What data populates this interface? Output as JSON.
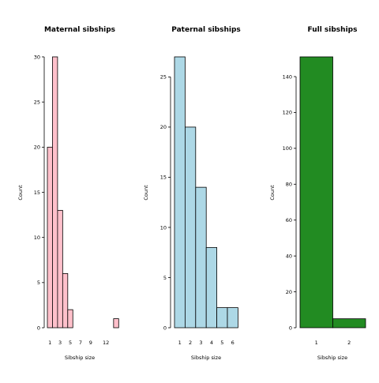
{
  "chart_data": [
    {
      "type": "bar",
      "title": "Maternal sibships",
      "xlabel": "",
      "ylabel": "Count",
      "ylim": [
        0,
        30
      ],
      "yticks": [
        0,
        5,
        10,
        15,
        20,
        25,
        30
      ],
      "xticks": [
        "1",
        "3",
        "5",
        "7",
        "9",
        "12"
      ],
      "categories": [
        "1",
        "2",
        "3",
        "4",
        "5",
        "6",
        "7",
        "8",
        "9",
        "10",
        "11",
        "12",
        "13",
        "14"
      ],
      "values": [
        20,
        30,
        13,
        6,
        2,
        0,
        0,
        0,
        0,
        0,
        0,
        0,
        0,
        1
      ],
      "color": "#ffc0cb"
    },
    {
      "type": "bar",
      "title": "Paternal sibships",
      "xlabel": "Sibship size",
      "ylabel": "Count",
      "ylim": [
        0,
        27
      ],
      "yticks": [
        0,
        5,
        10,
        15,
        20,
        25
      ],
      "xticks": [
        "1",
        "2",
        "3",
        "4",
        "5",
        "6"
      ],
      "categories": [
        "1",
        "2",
        "3",
        "4",
        "5",
        "6"
      ],
      "values": [
        27,
        20,
        14,
        8,
        2,
        2
      ],
      "color": "#add8e6"
    },
    {
      "type": "bar",
      "title": "Full sibships",
      "xlabel": "Sibship size",
      "ylabel": "Count",
      "ylim": [
        0,
        151
      ],
      "yticks": [
        0,
        20,
        40,
        60,
        80,
        100,
        120,
        140
      ],
      "xticks": [
        "1",
        "2"
      ],
      "categories": [
        "1",
        "2"
      ],
      "values": [
        151,
        5
      ],
      "color": "#228b22"
    }
  ]
}
